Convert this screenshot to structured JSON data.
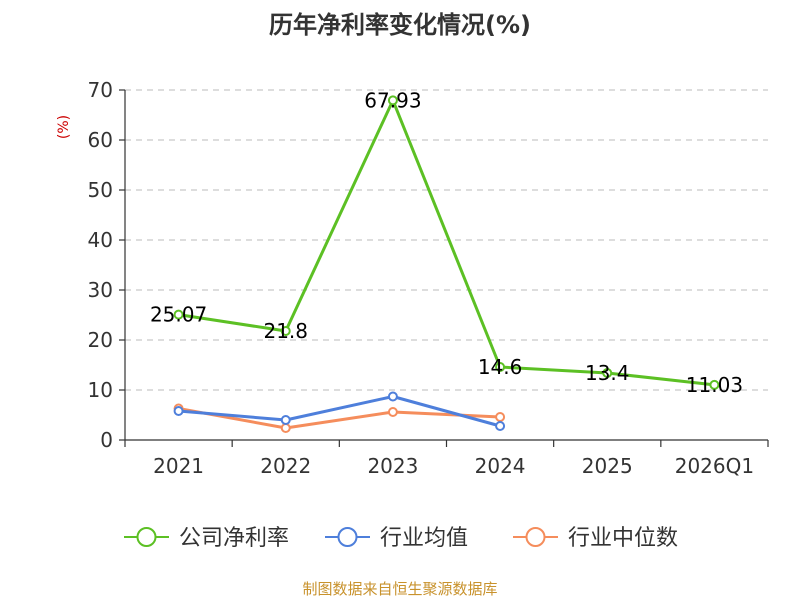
{
  "chart_data": {
    "type": "line",
    "title": "历年净利率变化情况(%)",
    "ylabel": "(%)",
    "xlabel": "",
    "categories": [
      "2021",
      "2022",
      "2023",
      "2024",
      "2025",
      "2026Q1"
    ],
    "ylim": [
      0,
      70
    ],
    "yticks": [
      0,
      10,
      20,
      30,
      40,
      50,
      60,
      70
    ],
    "grid": true,
    "legend_position": "bottom",
    "series": [
      {
        "name": "公司净利率",
        "color": "#5cc024",
        "values": [
          25.07,
          21.8,
          67.93,
          14.6,
          13.4,
          11.03
        ],
        "labels": [
          "25.07",
          "21.8",
          "67.93",
          "14.6",
          "13.4",
          "11.03"
        ]
      },
      {
        "name": "行业均值",
        "color": "#4e7fdb",
        "values": [
          5.8,
          4.0,
          8.7,
          2.8,
          null,
          null
        ]
      },
      {
        "name": "行业中位数",
        "color": "#f58d5c",
        "values": [
          6.3,
          2.4,
          5.6,
          4.6,
          null,
          null
        ]
      }
    ]
  },
  "source": "制图数据来自恒生聚源数据库"
}
